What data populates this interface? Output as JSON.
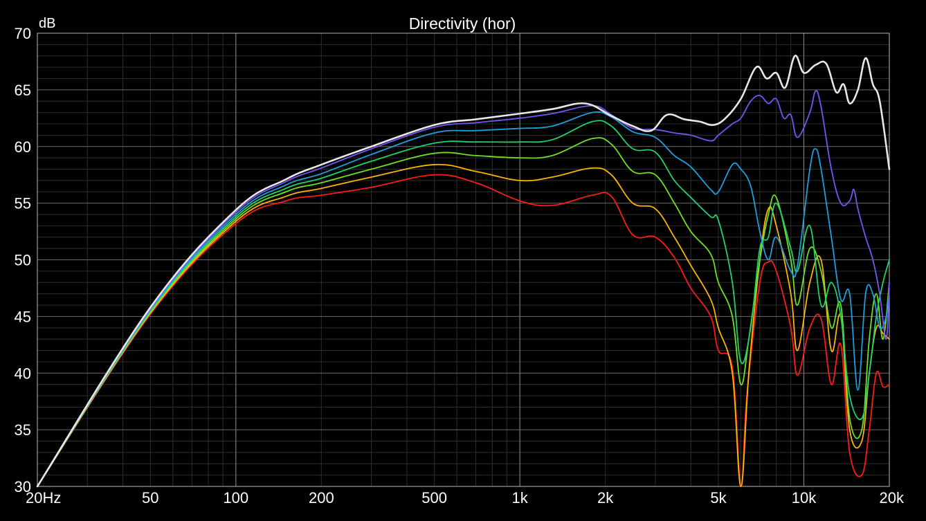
{
  "chart_data": {
    "type": "line",
    "title": "Directivity (hor)",
    "ylabel": "dB",
    "xlabel": "",
    "x_scale": "log",
    "xlim": [
      20,
      20000
    ],
    "ylim": [
      30,
      70
    ],
    "grid": true,
    "x_ticks": [
      {
        "value": 20,
        "label": "20Hz"
      },
      {
        "value": 50,
        "label": "50"
      },
      {
        "value": 100,
        "label": "100"
      },
      {
        "value": 200,
        "label": "200"
      },
      {
        "value": 500,
        "label": "500"
      },
      {
        "value": 1000,
        "label": "1k"
      },
      {
        "value": 2000,
        "label": "2k"
      },
      {
        "value": 5000,
        "label": "5k"
      },
      {
        "value": 10000,
        "label": "10k"
      },
      {
        "value": 20000,
        "label": "20k"
      }
    ],
    "y_ticks": [
      {
        "value": 30,
        "label": "30"
      },
      {
        "value": 35,
        "label": "35"
      },
      {
        "value": 40,
        "label": "40"
      },
      {
        "value": 45,
        "label": "45"
      },
      {
        "value": 50,
        "label": "50"
      },
      {
        "value": 55,
        "label": "55"
      },
      {
        "value": 60,
        "label": "60"
      },
      {
        "value": 65,
        "label": "65"
      },
      {
        "value": 70,
        "label": "70"
      }
    ],
    "series": [
      {
        "color": "#ff1a1a",
        "points": [
          [
            20,
            30
          ],
          [
            50,
            45.2
          ],
          [
            100,
            53.2
          ],
          [
            150,
            55.2
          ],
          [
            200,
            55.7
          ],
          [
            300,
            56.4
          ],
          [
            500,
            57.5
          ],
          [
            700,
            56.8
          ],
          [
            1000,
            55.2
          ],
          [
            1300,
            54.8
          ],
          [
            1800,
            55.7
          ],
          [
            2100,
            55.6
          ],
          [
            2500,
            52.2
          ],
          [
            3000,
            52
          ],
          [
            3500,
            50.2
          ],
          [
            4000,
            47.5
          ],
          [
            4700,
            45
          ],
          [
            5000,
            42
          ],
          [
            5600,
            40.5
          ],
          [
            6000,
            30
          ],
          [
            6300,
            38
          ],
          [
            7000,
            48
          ],
          [
            7500,
            49.8
          ],
          [
            8000,
            49
          ],
          [
            9000,
            44
          ],
          [
            9500,
            39.8
          ],
          [
            10500,
            44
          ],
          [
            11500,
            44.8
          ],
          [
            12500,
            39
          ],
          [
            13500,
            42.5
          ],
          [
            14500,
            33
          ],
          [
            16000,
            31
          ],
          [
            17000,
            35
          ],
          [
            18000,
            40
          ],
          [
            19000,
            38.8
          ],
          [
            20000,
            39
          ]
        ]
      },
      {
        "color": "#ffb400",
        "points": [
          [
            20,
            30
          ],
          [
            50,
            45.3
          ],
          [
            100,
            53.4
          ],
          [
            150,
            55.6
          ],
          [
            200,
            56.3
          ],
          [
            300,
            57.3
          ],
          [
            500,
            58.4
          ],
          [
            700,
            57.8
          ],
          [
            1000,
            57
          ],
          [
            1300,
            57.3
          ],
          [
            1800,
            58.1
          ],
          [
            2100,
            57.5
          ],
          [
            2500,
            55
          ],
          [
            3000,
            54.5
          ],
          [
            3500,
            52
          ],
          [
            4000,
            49.5
          ],
          [
            4700,
            46.5
          ],
          [
            5000,
            44
          ],
          [
            5600,
            40
          ],
          [
            6000,
            30
          ],
          [
            6400,
            40
          ],
          [
            7000,
            50
          ],
          [
            7500,
            54.5
          ],
          [
            8000,
            53
          ],
          [
            9000,
            47
          ],
          [
            9500,
            42
          ],
          [
            10500,
            48
          ],
          [
            11500,
            50
          ],
          [
            12500,
            42
          ],
          [
            13500,
            45
          ],
          [
            14500,
            35
          ],
          [
            16000,
            34
          ],
          [
            17000,
            40
          ],
          [
            18000,
            44
          ],
          [
            19000,
            43.5
          ],
          [
            20000,
            43
          ]
        ]
      },
      {
        "color": "#70e020",
        "points": [
          [
            20,
            30
          ],
          [
            50,
            45.4
          ],
          [
            100,
            53.6
          ],
          [
            150,
            56
          ],
          [
            200,
            56.8
          ],
          [
            300,
            58
          ],
          [
            500,
            59.4
          ],
          [
            700,
            59.2
          ],
          [
            1000,
            59
          ],
          [
            1300,
            59.2
          ],
          [
            1800,
            60.7
          ],
          [
            2100,
            60.2
          ],
          [
            2500,
            57.8
          ],
          [
            3000,
            57.5
          ],
          [
            3500,
            55
          ],
          [
            4000,
            52.5
          ],
          [
            4700,
            50.5
          ],
          [
            5000,
            48
          ],
          [
            5600,
            45
          ],
          [
            6000,
            39
          ],
          [
            6400,
            43
          ],
          [
            7000,
            50
          ],
          [
            7500,
            54
          ],
          [
            8000,
            55.5
          ],
          [
            9000,
            50
          ],
          [
            9500,
            46
          ],
          [
            10500,
            51
          ],
          [
            11500,
            49
          ],
          [
            12500,
            44
          ],
          [
            13500,
            46
          ],
          [
            14500,
            36
          ],
          [
            16000,
            35
          ],
          [
            17000,
            43
          ],
          [
            18000,
            47
          ],
          [
            19000,
            43
          ],
          [
            20000,
            48
          ]
        ]
      },
      {
        "color": "#1ed36a",
        "points": [
          [
            20,
            30
          ],
          [
            50,
            45.5
          ],
          [
            100,
            53.8
          ],
          [
            150,
            56.3
          ],
          [
            200,
            57.2
          ],
          [
            300,
            58.7
          ],
          [
            500,
            60.3
          ],
          [
            700,
            60.4
          ],
          [
            1000,
            60.4
          ],
          [
            1300,
            60.6
          ],
          [
            1800,
            62.2
          ],
          [
            2100,
            61.8
          ],
          [
            2500,
            59.8
          ],
          [
            3000,
            59.5
          ],
          [
            3500,
            57
          ],
          [
            4000,
            55.5
          ],
          [
            4700,
            53.8
          ],
          [
            5000,
            53.5
          ],
          [
            5600,
            48
          ],
          [
            6000,
            41
          ],
          [
            6500,
            44
          ],
          [
            7000,
            51
          ],
          [
            7500,
            52
          ],
          [
            8000,
            55
          ],
          [
            9000,
            51
          ],
          [
            9500,
            49
          ],
          [
            10500,
            53
          ],
          [
            11500,
            46
          ],
          [
            12500,
            48
          ],
          [
            13500,
            45
          ],
          [
            14500,
            38
          ],
          [
            16000,
            36
          ],
          [
            17000,
            40
          ],
          [
            18000,
            45
          ],
          [
            19000,
            48
          ],
          [
            20000,
            50
          ]
        ]
      },
      {
        "color": "#1c9fe0",
        "points": [
          [
            20,
            30
          ],
          [
            50,
            45.6
          ],
          [
            100,
            54
          ],
          [
            150,
            56.6
          ],
          [
            200,
            57.6
          ],
          [
            300,
            59.3
          ],
          [
            500,
            61.2
          ],
          [
            700,
            61.4
          ],
          [
            1000,
            61.6
          ],
          [
            1300,
            61.8
          ],
          [
            1800,
            63
          ],
          [
            2100,
            62.6
          ],
          [
            2500,
            61.3
          ],
          [
            3000,
            60.8
          ],
          [
            3500,
            59.2
          ],
          [
            4000,
            58.2
          ],
          [
            4700,
            56.2
          ],
          [
            5000,
            56
          ],
          [
            5600,
            58.4
          ],
          [
            6000,
            58
          ],
          [
            6500,
            56.5
          ],
          [
            7000,
            52.5
          ],
          [
            7500,
            50
          ],
          [
            8000,
            52
          ],
          [
            9000,
            49
          ],
          [
            9500,
            49.5
          ],
          [
            10500,
            58
          ],
          [
            11000,
            59.8
          ],
          [
            11500,
            58
          ],
          [
            12500,
            52
          ],
          [
            13500,
            46.5
          ],
          [
            14500,
            47
          ],
          [
            15500,
            38.5
          ],
          [
            16500,
            47
          ],
          [
            17500,
            47
          ],
          [
            18500,
            44
          ],
          [
            19500,
            45
          ],
          [
            20000,
            47.5
          ]
        ]
      },
      {
        "color": "#7a52f5",
        "points": [
          [
            20,
            30
          ],
          [
            50,
            45.7
          ],
          [
            100,
            54.2
          ],
          [
            150,
            56.9
          ],
          [
            200,
            58.1
          ],
          [
            300,
            59.8
          ],
          [
            500,
            61.7
          ],
          [
            700,
            62.1
          ],
          [
            1000,
            62.5
          ],
          [
            1300,
            62.9
          ],
          [
            1800,
            63.6
          ],
          [
            2100,
            62.8
          ],
          [
            2500,
            61.6
          ],
          [
            3000,
            61.5
          ],
          [
            3500,
            61.2
          ],
          [
            4000,
            61
          ],
          [
            4700,
            60.5
          ],
          [
            5000,
            61
          ],
          [
            5600,
            62
          ],
          [
            6000,
            62.5
          ],
          [
            6500,
            64
          ],
          [
            7000,
            64.5
          ],
          [
            7500,
            63.8
          ],
          [
            8000,
            64.2
          ],
          [
            8500,
            62.5
          ],
          [
            9000,
            62.8
          ],
          [
            9500,
            60.8
          ],
          [
            10500,
            63
          ],
          [
            11000,
            64.9
          ],
          [
            11500,
            63.5
          ],
          [
            12500,
            58
          ],
          [
            13500,
            55
          ],
          [
            14500,
            55.2
          ],
          [
            15000,
            56.2
          ],
          [
            15500,
            54.5
          ],
          [
            16500,
            52
          ],
          [
            17500,
            50
          ],
          [
            18500,
            47
          ],
          [
            19500,
            43
          ],
          [
            20000,
            48
          ]
        ]
      },
      {
        "color": "#e8e8e8",
        "points": [
          [
            20,
            30
          ],
          [
            50,
            45.8
          ],
          [
            100,
            54.4
          ],
          [
            150,
            57.1
          ],
          [
            200,
            58.4
          ],
          [
            300,
            60
          ],
          [
            500,
            61.9
          ],
          [
            700,
            62.4
          ],
          [
            1000,
            62.9
          ],
          [
            1300,
            63.3
          ],
          [
            1700,
            63.8
          ],
          [
            2100,
            62.7
          ],
          [
            2500,
            61.8
          ],
          [
            2900,
            61.4
          ],
          [
            3300,
            62.8
          ],
          [
            3800,
            62.4
          ],
          [
            4300,
            62.2
          ],
          [
            4800,
            61.9
          ],
          [
            5300,
            62.5
          ],
          [
            6000,
            64.2
          ],
          [
            6800,
            67
          ],
          [
            7400,
            66
          ],
          [
            8000,
            66.5
          ],
          [
            8600,
            65.2
          ],
          [
            9300,
            68
          ],
          [
            10000,
            66.5
          ],
          [
            11000,
            67.2
          ],
          [
            12000,
            67.3
          ],
          [
            13000,
            64.8
          ],
          [
            13800,
            65.5
          ],
          [
            14500,
            63.8
          ],
          [
            15500,
            65
          ],
          [
            16500,
            67.8
          ],
          [
            17500,
            65.5
          ],
          [
            18500,
            64
          ],
          [
            20000,
            58
          ]
        ]
      }
    ]
  }
}
